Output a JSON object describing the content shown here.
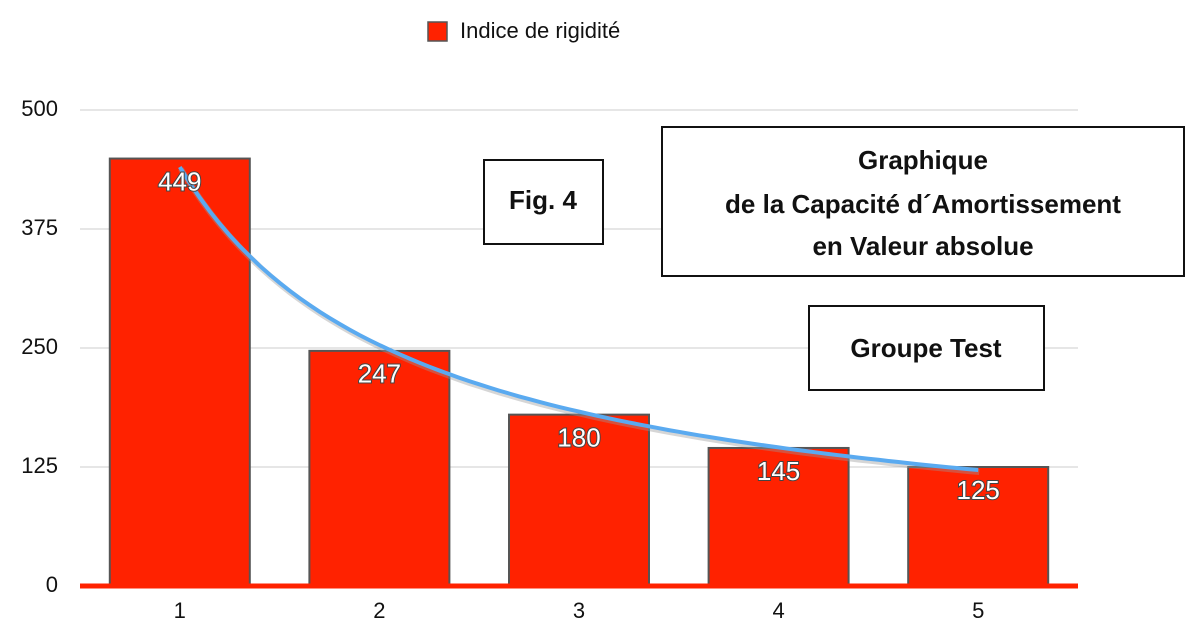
{
  "chart_data": {
    "type": "bar",
    "title": [
      "Graphique",
      "de la Capacité d´Amortissement",
      "en Valeur absolue"
    ],
    "annotations": [
      "Fig. 4",
      "Groupe Test"
    ],
    "categories": [
      "1",
      "2",
      "3",
      "4",
      "5"
    ],
    "series": [
      {
        "name": "Indice de rigidité",
        "color": "#ff2200",
        "values": [
          449,
          247,
          180,
          145,
          125
        ]
      }
    ],
    "ylim": [
      0,
      500
    ],
    "yticks": [
      0,
      125,
      250,
      375,
      500
    ],
    "grid": true,
    "legend": "top",
    "trendline": "power",
    "trendline_color": "#5aaaf0"
  }
}
